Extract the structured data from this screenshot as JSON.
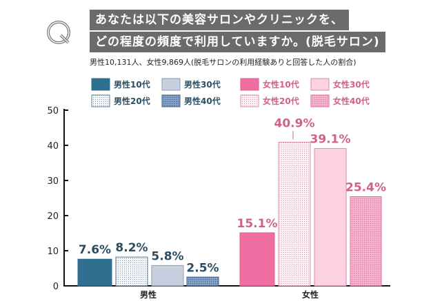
{
  "header": {
    "q_mark": "Q",
    "title_line1": "あなたは以下の美容サロンやクリニックを、",
    "title_line2": "どの程度の頻度で利用していますか。(脱毛サロン)",
    "subtitle": "男性10,131人、女性9,869人(脱毛サロンの利用経験ありと回答した人の割合)"
  },
  "chart_data": {
    "type": "bar",
    "title": "あなたは以下の美容サロンやクリニックを、どの程度の頻度で利用していますか。(脱毛サロン)",
    "categories": [
      "男性",
      "女性"
    ],
    "series": [
      {
        "name": "男性10代",
        "group": "男性",
        "value": 7.6,
        "label": "7.6%",
        "color": "#2f6f8f",
        "pattern": "solid"
      },
      {
        "name": "男性20代",
        "group": "男性",
        "value": 8.2,
        "label": "8.2%",
        "color": "#9fb0c6",
        "pattern": "dotted-light"
      },
      {
        "name": "男性30代",
        "group": "男性",
        "value": 5.8,
        "label": "5.8%",
        "color": "#c6d0df",
        "pattern": "solid"
      },
      {
        "name": "男性40代",
        "group": "男性",
        "value": 2.5,
        "label": "2.5%",
        "color": "#5f86b0",
        "pattern": "dotted-dark"
      },
      {
        "name": "女性10代",
        "group": "女性",
        "value": 15.1,
        "label": "15.1%",
        "color": "#f06fa2",
        "pattern": "solid"
      },
      {
        "name": "女性20代",
        "group": "女性",
        "value": 40.9,
        "label": "40.9%",
        "color": "#e8a6c0",
        "pattern": "dotted-light"
      },
      {
        "name": "女性30代",
        "group": "女性",
        "value": 39.1,
        "label": "39.1%",
        "color": "#fdd3e3",
        "pattern": "solid"
      },
      {
        "name": "女性40代",
        "group": "女性",
        "value": 25.4,
        "label": "25.4%",
        "color": "#ee8fb5",
        "pattern": "dotted-dark"
      }
    ],
    "yticks": [
      "0",
      "10",
      "20",
      "30",
      "40",
      "50"
    ],
    "ylim": [
      0,
      50
    ],
    "xlabel": "",
    "ylabel": "",
    "legend": "top",
    "grid": false,
    "label_colors": {
      "男性": "#2b4d63",
      "女性": "#d2608c"
    }
  }
}
